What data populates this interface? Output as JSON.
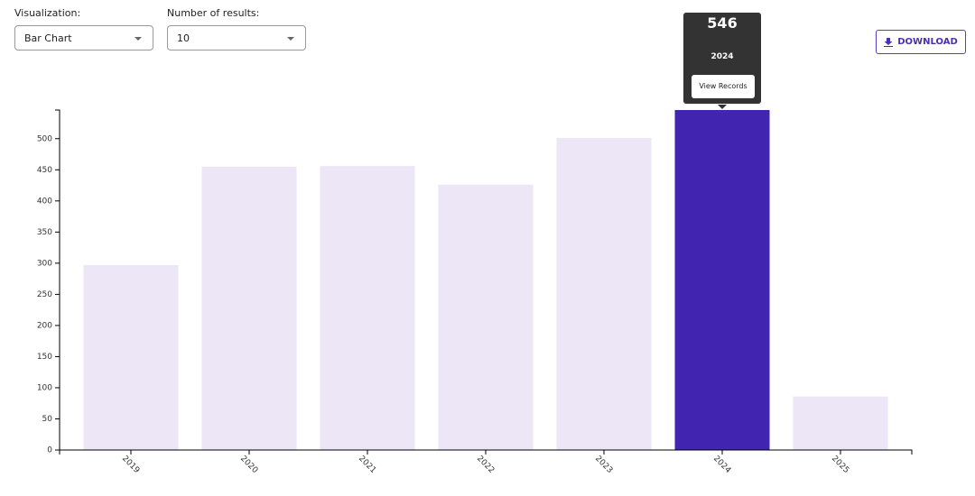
{
  "controls": {
    "visualization": {
      "label": "Visualization:",
      "value": "Bar Chart"
    },
    "results": {
      "label": "Number of results:",
      "value": "10"
    },
    "download": "DOWNLOAD"
  },
  "tooltip": {
    "action": "View Records"
  },
  "chart_data": {
    "type": "bar",
    "categories": [
      "2019",
      "2020",
      "2021",
      "2022",
      "2023",
      "2024",
      "2025"
    ],
    "values": [
      297,
      455,
      456,
      426,
      501,
      546,
      86
    ],
    "colors": [
      "#ede6f6",
      "#ede6f6",
      "#ede6f6",
      "#ede6f6",
      "#ede6f6",
      "#4124b0",
      "#ede6f6"
    ],
    "ylim": [
      0,
      546
    ],
    "yticks": [
      0,
      50,
      100,
      150,
      200,
      250,
      300,
      350,
      400,
      450,
      500
    ]
  }
}
